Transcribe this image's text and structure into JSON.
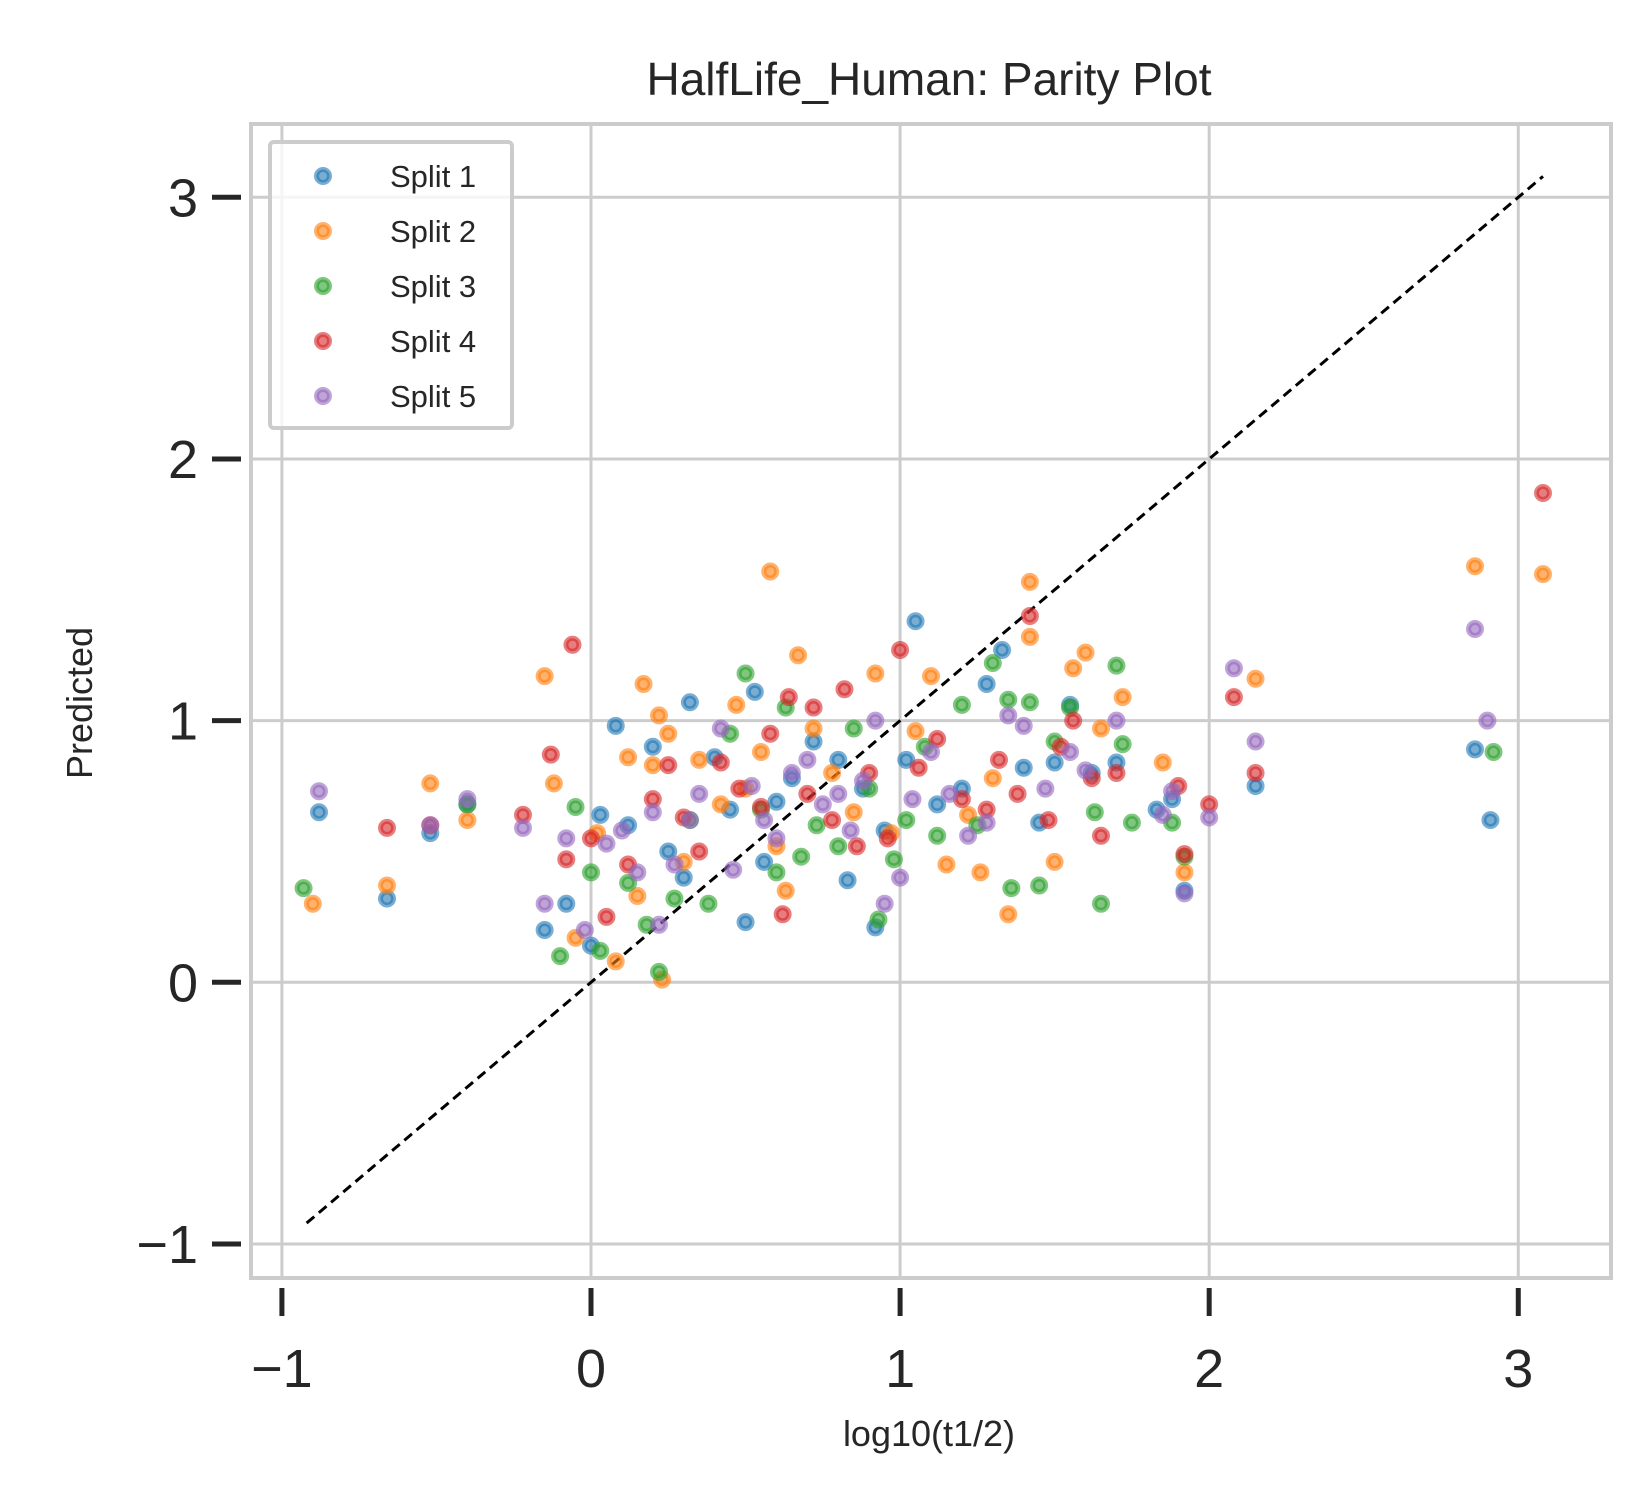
{
  "chart_data": {
    "type": "scatter",
    "title": "HalfLife_Human: Parity Plot",
    "xlabel": "log10(t1/2)",
    "ylabel": "Predicted",
    "xlim": [
      -1.1,
      3.3
    ],
    "ylim": [
      -1.13,
      3.28
    ],
    "xticks": [
      -1,
      0,
      1,
      2,
      3
    ],
    "yticks": [
      -1,
      0,
      1,
      2,
      3
    ],
    "xtick_labels": [
      "−1",
      "0",
      "1",
      "2",
      "3"
    ],
    "ytick_labels": [
      "−1",
      "0",
      "1",
      "2",
      "3"
    ],
    "grid": true,
    "legend_position": "top-left",
    "parity_line": {
      "from": -0.92,
      "to": 3.08,
      "style": "dashed",
      "color": "#000000"
    },
    "series": [
      {
        "name": "Split 1",
        "color": "#1f77b4",
        "points": [
          [
            -0.88,
            0.65
          ],
          [
            -0.66,
            0.32
          ],
          [
            -0.52,
            0.57
          ],
          [
            -0.4,
            0.68
          ],
          [
            -0.15,
            0.2
          ],
          [
            -0.08,
            0.3
          ],
          [
            0.0,
            0.14
          ],
          [
            0.03,
            0.64
          ],
          [
            0.08,
            0.98
          ],
          [
            0.12,
            0.6
          ],
          [
            0.2,
            0.9
          ],
          [
            0.25,
            0.5
          ],
          [
            0.3,
            0.4
          ],
          [
            0.32,
            1.07
          ],
          [
            0.4,
            0.86
          ],
          [
            0.45,
            0.66
          ],
          [
            0.5,
            0.23
          ],
          [
            0.53,
            1.11
          ],
          [
            0.56,
            0.46
          ],
          [
            0.6,
            0.69
          ],
          [
            0.65,
            0.78
          ],
          [
            0.72,
            0.92
          ],
          [
            0.8,
            0.85
          ],
          [
            0.83,
            0.39
          ],
          [
            0.88,
            0.74
          ],
          [
            0.92,
            0.21
          ],
          [
            0.95,
            0.58
          ],
          [
            1.02,
            0.85
          ],
          [
            1.05,
            1.38
          ],
          [
            1.12,
            0.68
          ],
          [
            1.2,
            0.74
          ],
          [
            1.28,
            1.14
          ],
          [
            1.33,
            1.27
          ],
          [
            1.4,
            0.82
          ],
          [
            1.45,
            0.61
          ],
          [
            1.5,
            0.84
          ],
          [
            1.55,
            1.06
          ],
          [
            1.62,
            0.8
          ],
          [
            1.7,
            0.84
          ],
          [
            1.83,
            0.66
          ],
          [
            1.88,
            0.7
          ],
          [
            1.92,
            0.35
          ],
          [
            2.15,
            0.75
          ],
          [
            2.86,
            0.89
          ],
          [
            2.91,
            0.62
          ]
        ]
      },
      {
        "name": "Split 2",
        "color": "#ff7f0e",
        "points": [
          [
            -0.9,
            0.3
          ],
          [
            -0.66,
            0.37
          ],
          [
            -0.52,
            0.76
          ],
          [
            -0.4,
            0.62
          ],
          [
            -0.15,
            1.17
          ],
          [
            -0.12,
            0.76
          ],
          [
            -0.05,
            0.17
          ],
          [
            0.02,
            0.57
          ],
          [
            0.08,
            0.08
          ],
          [
            0.12,
            0.86
          ],
          [
            0.15,
            0.33
          ],
          [
            0.17,
            1.14
          ],
          [
            0.2,
            0.83
          ],
          [
            0.22,
            1.02
          ],
          [
            0.23,
            0.01
          ],
          [
            0.25,
            0.95
          ],
          [
            0.3,
            0.46
          ],
          [
            0.35,
            0.85
          ],
          [
            0.42,
            0.68
          ],
          [
            0.47,
            1.06
          ],
          [
            0.5,
            0.74
          ],
          [
            0.55,
            0.88
          ],
          [
            0.58,
            1.57
          ],
          [
            0.6,
            0.52
          ],
          [
            0.63,
            0.35
          ],
          [
            0.67,
            1.25
          ],
          [
            0.72,
            0.97
          ],
          [
            0.78,
            0.8
          ],
          [
            0.85,
            0.65
          ],
          [
            0.92,
            1.18
          ],
          [
            0.97,
            0.57
          ],
          [
            1.05,
            0.96
          ],
          [
            1.1,
            1.17
          ],
          [
            1.15,
            0.45
          ],
          [
            1.22,
            0.64
          ],
          [
            1.26,
            0.42
          ],
          [
            1.3,
            0.78
          ],
          [
            1.35,
            0.26
          ],
          [
            1.42,
            1.53
          ],
          [
            1.42,
            1.32
          ],
          [
            1.5,
            0.46
          ],
          [
            1.56,
            1.2
          ],
          [
            1.6,
            1.26
          ],
          [
            1.65,
            0.97
          ],
          [
            1.72,
            1.09
          ],
          [
            1.85,
            0.84
          ],
          [
            1.92,
            0.42
          ],
          [
            2.15,
            1.16
          ],
          [
            2.86,
            1.59
          ],
          [
            3.08,
            1.56
          ]
        ]
      },
      {
        "name": "Split 3",
        "color": "#2ca02c",
        "points": [
          [
            -0.93,
            0.36
          ],
          [
            -0.4,
            0.68
          ],
          [
            -0.1,
            0.1
          ],
          [
            -0.05,
            0.67
          ],
          [
            0.0,
            0.42
          ],
          [
            0.03,
            0.12
          ],
          [
            0.12,
            0.38
          ],
          [
            0.18,
            0.22
          ],
          [
            0.22,
            0.04
          ],
          [
            0.27,
            0.32
          ],
          [
            0.32,
            0.62
          ],
          [
            0.38,
            0.3
          ],
          [
            0.45,
            0.95
          ],
          [
            0.5,
            1.18
          ],
          [
            0.55,
            0.66
          ],
          [
            0.6,
            0.42
          ],
          [
            0.63,
            1.05
          ],
          [
            0.68,
            0.48
          ],
          [
            0.73,
            0.6
          ],
          [
            0.8,
            0.52
          ],
          [
            0.85,
            0.97
          ],
          [
            0.9,
            0.74
          ],
          [
            0.93,
            0.24
          ],
          [
            0.98,
            0.47
          ],
          [
            1.02,
            0.62
          ],
          [
            1.08,
            0.9
          ],
          [
            1.12,
            0.56
          ],
          [
            1.2,
            1.06
          ],
          [
            1.25,
            0.6
          ],
          [
            1.3,
            1.22
          ],
          [
            1.35,
            1.08
          ],
          [
            1.36,
            0.36
          ],
          [
            1.42,
            1.07
          ],
          [
            1.45,
            0.37
          ],
          [
            1.5,
            0.92
          ],
          [
            1.55,
            1.05
          ],
          [
            1.63,
            0.65
          ],
          [
            1.65,
            0.3
          ],
          [
            1.7,
            1.21
          ],
          [
            1.72,
            0.91
          ],
          [
            1.75,
            0.61
          ],
          [
            1.88,
            0.61
          ],
          [
            1.92,
            0.48
          ],
          [
            2.92,
            0.88
          ]
        ]
      },
      {
        "name": "Split 4",
        "color": "#d62728",
        "points": [
          [
            -0.66,
            0.59
          ],
          [
            -0.52,
            0.6
          ],
          [
            -0.22,
            0.64
          ],
          [
            -0.13,
            0.87
          ],
          [
            -0.08,
            0.47
          ],
          [
            -0.06,
            1.29
          ],
          [
            0.0,
            0.55
          ],
          [
            0.05,
            0.25
          ],
          [
            0.12,
            0.45
          ],
          [
            0.2,
            0.7
          ],
          [
            0.25,
            0.83
          ],
          [
            0.3,
            0.63
          ],
          [
            0.35,
            0.5
          ],
          [
            0.42,
            0.84
          ],
          [
            0.48,
            0.74
          ],
          [
            0.55,
            0.67
          ],
          [
            0.58,
            0.95
          ],
          [
            0.62,
            0.26
          ],
          [
            0.64,
            1.09
          ],
          [
            0.7,
            0.72
          ],
          [
            0.72,
            1.05
          ],
          [
            0.78,
            0.62
          ],
          [
            0.82,
            1.12
          ],
          [
            0.86,
            0.52
          ],
          [
            0.9,
            0.8
          ],
          [
            0.96,
            0.55
          ],
          [
            1.0,
            1.27
          ],
          [
            1.06,
            0.82
          ],
          [
            1.12,
            0.93
          ],
          [
            1.2,
            0.7
          ],
          [
            1.28,
            0.66
          ],
          [
            1.32,
            0.85
          ],
          [
            1.38,
            0.72
          ],
          [
            1.42,
            1.4
          ],
          [
            1.48,
            0.62
          ],
          [
            1.52,
            0.9
          ],
          [
            1.56,
            1.0
          ],
          [
            1.62,
            0.78
          ],
          [
            1.65,
            0.56
          ],
          [
            1.7,
            0.8
          ],
          [
            1.9,
            0.75
          ],
          [
            1.92,
            0.49
          ],
          [
            2.0,
            0.68
          ],
          [
            2.08,
            1.09
          ],
          [
            2.15,
            0.8
          ],
          [
            3.08,
            1.87
          ]
        ]
      },
      {
        "name": "Split 5",
        "color": "#9467bd",
        "points": [
          [
            -0.88,
            0.73
          ],
          [
            -0.52,
            0.6
          ],
          [
            -0.4,
            0.7
          ],
          [
            -0.22,
            0.59
          ],
          [
            -0.15,
            0.3
          ],
          [
            -0.08,
            0.55
          ],
          [
            -0.02,
            0.2
          ],
          [
            0.05,
            0.53
          ],
          [
            0.1,
            0.58
          ],
          [
            0.15,
            0.42
          ],
          [
            0.2,
            0.65
          ],
          [
            0.22,
            0.22
          ],
          [
            0.27,
            0.45
          ],
          [
            0.32,
            0.62
          ],
          [
            0.35,
            0.72
          ],
          [
            0.42,
            0.97
          ],
          [
            0.46,
            0.43
          ],
          [
            0.52,
            0.75
          ],
          [
            0.56,
            0.62
          ],
          [
            0.6,
            0.55
          ],
          [
            0.65,
            0.8
          ],
          [
            0.7,
            0.85
          ],
          [
            0.75,
            0.68
          ],
          [
            0.8,
            0.72
          ],
          [
            0.84,
            0.58
          ],
          [
            0.88,
            0.77
          ],
          [
            0.92,
            1.0
          ],
          [
            0.95,
            0.3
          ],
          [
            1.0,
            0.4
          ],
          [
            1.04,
            0.7
          ],
          [
            1.1,
            0.88
          ],
          [
            1.16,
            0.72
          ],
          [
            1.22,
            0.56
          ],
          [
            1.28,
            0.61
          ],
          [
            1.35,
            1.02
          ],
          [
            1.4,
            0.98
          ],
          [
            1.47,
            0.74
          ],
          [
            1.55,
            0.88
          ],
          [
            1.6,
            0.81
          ],
          [
            1.7,
            1.0
          ],
          [
            1.85,
            0.64
          ],
          [
            1.88,
            0.73
          ],
          [
            1.92,
            0.34
          ],
          [
            2.0,
            0.63
          ],
          [
            2.08,
            1.2
          ],
          [
            2.15,
            0.92
          ],
          [
            2.86,
            1.35
          ],
          [
            2.9,
            1.0
          ]
        ]
      }
    ]
  }
}
